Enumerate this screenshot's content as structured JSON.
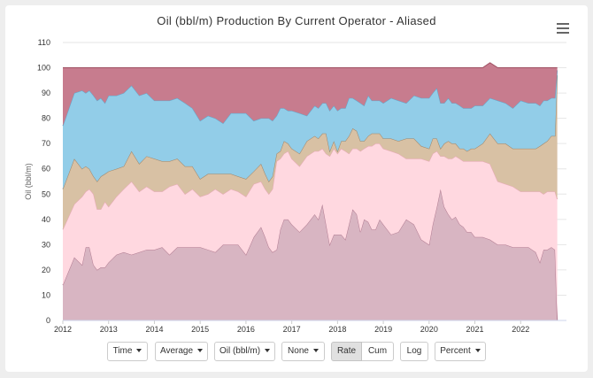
{
  "chart_data": {
    "type": "area",
    "stacked": true,
    "title": "Oil (bbl/m) Production By Current Operator - Aliased",
    "ylabel": "Oil (bbl/m)",
    "xlabel": "",
    "ylim": [
      0,
      110
    ],
    "xlim": [
      2012.0,
      2023.0
    ],
    "yticks": [
      0,
      10,
      20,
      30,
      40,
      50,
      60,
      70,
      80,
      90,
      100,
      110
    ],
    "xticks": [
      "2012",
      "2013",
      "2014",
      "2015",
      "2016",
      "2017",
      "2018",
      "2019",
      "2020",
      "2021",
      "2022"
    ],
    "grid": true,
    "legend": "none",
    "x": [
      2012.0,
      2012.25,
      2012.42,
      2012.5,
      2012.58,
      2012.67,
      2012.75,
      2012.83,
      2012.92,
      2013.0,
      2013.17,
      2013.33,
      2013.5,
      2013.67,
      2013.83,
      2014.0,
      2014.17,
      2014.33,
      2014.5,
      2014.67,
      2014.83,
      2015.0,
      2015.17,
      2015.33,
      2015.5,
      2015.67,
      2015.83,
      2016.0,
      2016.17,
      2016.33,
      2016.42,
      2016.5,
      2016.58,
      2016.67,
      2016.75,
      2016.83,
      2016.92,
      2017.0,
      2017.17,
      2017.33,
      2017.5,
      2017.58,
      2017.67,
      2017.75,
      2017.83,
      2017.92,
      2018.0,
      2018.08,
      2018.17,
      2018.25,
      2018.33,
      2018.42,
      2018.5,
      2018.58,
      2018.67,
      2018.75,
      2018.83,
      2018.92,
      2019.0,
      2019.17,
      2019.33,
      2019.5,
      2019.67,
      2019.83,
      2020.0,
      2020.08,
      2020.17,
      2020.25,
      2020.33,
      2020.42,
      2020.5,
      2020.58,
      2020.67,
      2020.75,
      2020.83,
      2020.92,
      2021.0,
      2021.17,
      2021.33,
      2021.5,
      2021.67,
      2021.83,
      2022.0,
      2022.17,
      2022.25,
      2022.33,
      2022.42,
      2022.5,
      2022.58,
      2022.67,
      2022.75,
      2022.8
    ],
    "series": [
      {
        "name": "",
        "color": "#d8b5c2",
        "stroke": "#b07a90",
        "values": [
          14,
          25,
          22,
          29,
          29,
          22,
          20,
          21,
          21,
          23,
          26,
          27,
          26,
          27,
          28,
          28,
          29,
          26,
          29,
          29,
          29,
          29,
          28,
          27,
          30,
          30,
          30,
          26,
          33,
          37,
          33,
          29,
          27,
          28,
          36,
          40,
          40,
          38,
          35,
          38,
          42,
          40,
          46,
          38,
          30,
          34,
          34,
          34,
          32,
          38,
          44,
          42,
          35,
          40,
          39,
          36,
          36,
          40,
          38,
          34,
          35,
          40,
          38,
          32,
          30,
          38,
          45,
          52,
          45,
          42,
          40,
          41,
          38,
          37,
          35,
          35,
          33,
          33,
          32,
          30,
          30,
          29,
          29,
          29,
          28,
          27,
          23,
          28,
          28,
          29,
          28,
          0
        ]
      },
      {
        "name": "",
        "color": "#ffd8e0",
        "stroke": "#e8a8b8",
        "values": [
          22,
          21,
          27,
          22,
          23,
          28,
          24,
          23,
          26,
          22,
          23,
          25,
          29,
          24,
          25,
          23,
          22,
          27,
          25,
          21,
          23,
          20,
          22,
          25,
          20,
          22,
          21,
          23,
          21,
          18,
          19,
          21,
          25,
          35,
          28,
          26,
          27,
          26,
          26,
          27,
          25,
          27,
          22,
          28,
          35,
          34,
          32,
          34,
          35,
          28,
          24,
          26,
          32,
          28,
          30,
          33,
          34,
          30,
          30,
          33,
          31,
          24,
          26,
          32,
          33,
          28,
          22,
          13,
          20,
          22,
          24,
          24,
          26,
          26,
          28,
          28,
          30,
          30,
          30,
          25,
          24,
          24,
          22,
          22,
          23,
          24,
          28,
          22,
          23,
          22,
          23,
          48
        ]
      },
      {
        "name": "",
        "color": "#d8c1a4",
        "stroke": "#a08466",
        "values": [
          16,
          18,
          11,
          10,
          8,
          7,
          11,
          13,
          11,
          14,
          11,
          9,
          12,
          11,
          12,
          13,
          12,
          10,
          10,
          11,
          9,
          7,
          8,
          6,
          8,
          6,
          6,
          7,
          5,
          7,
          6,
          5,
          5,
          3,
          3,
          5,
          3,
          4,
          5,
          6,
          6,
          5,
          6,
          8,
          2,
          3,
          1,
          3,
          4,
          7,
          8,
          7,
          4,
          3,
          4,
          5,
          4,
          4,
          4,
          5,
          5,
          8,
          8,
          5,
          5,
          6,
          5,
          3,
          5,
          7,
          6,
          5,
          4,
          5,
          4,
          5,
          5,
          7,
          12,
          15,
          16,
          15,
          17,
          17,
          17,
          17,
          18,
          20,
          20,
          22,
          22,
          49
        ]
      },
      {
        "name": "",
        "color": "#92cde8",
        "stroke": "#60a8cc",
        "values": [
          25,
          26,
          31,
          29,
          31,
          32,
          32,
          31,
          28,
          30,
          29,
          29,
          26,
          27,
          25,
          23,
          24,
          24,
          24,
          25,
          23,
          23,
          23,
          22,
          20,
          24,
          25,
          26,
          20,
          18,
          22,
          25,
          22,
          15,
          17,
          13,
          13,
          15,
          16,
          10,
          12,
          12,
          12,
          12,
          16,
          14,
          16,
          13,
          13,
          15,
          12,
          12,
          15,
          14,
          16,
          13,
          13,
          13,
          14,
          16,
          16,
          14,
          17,
          19,
          20,
          18,
          20,
          18,
          16,
          17,
          16,
          16,
          17,
          16,
          17,
          16,
          17,
          15,
          14,
          17,
          16,
          16,
          19,
          18,
          18,
          18,
          16,
          17,
          16,
          15,
          15,
          2
        ]
      },
      {
        "name": "",
        "color": "#c77c8e",
        "stroke": "#a05062",
        "values": [
          23,
          10,
          9,
          10,
          9,
          11,
          13,
          12,
          14,
          11,
          11,
          10,
          7,
          11,
          10,
          13,
          13,
          13,
          12,
          14,
          16,
          21,
          19,
          20,
          22,
          18,
          18,
          18,
          21,
          20,
          20,
          20,
          21,
          19,
          16,
          16,
          17,
          17,
          18,
          19,
          15,
          16,
          14,
          14,
          17,
          15,
          17,
          16,
          16,
          12,
          12,
          13,
          14,
          15,
          11,
          13,
          13,
          13,
          14,
          12,
          13,
          14,
          11,
          12,
          12,
          10,
          8,
          14,
          14,
          12,
          14,
          14,
          15,
          16,
          16,
          16,
          15,
          15,
          14,
          13,
          14,
          16,
          13,
          14,
          14,
          14,
          15,
          13,
          13,
          12,
          12,
          1
        ]
      }
    ]
  },
  "controls": {
    "time_label": "Time",
    "average_label": "Average",
    "oil_label": "Oil (bbl/m)",
    "none_label": "None",
    "rate_label": "Rate",
    "cum_label": "Cum",
    "log_label": "Log",
    "percent_label": "Percent"
  },
  "colors": {
    "axis_text": "#333333",
    "grid": "#e6e6e6",
    "active_button": "#e0e0e0"
  }
}
